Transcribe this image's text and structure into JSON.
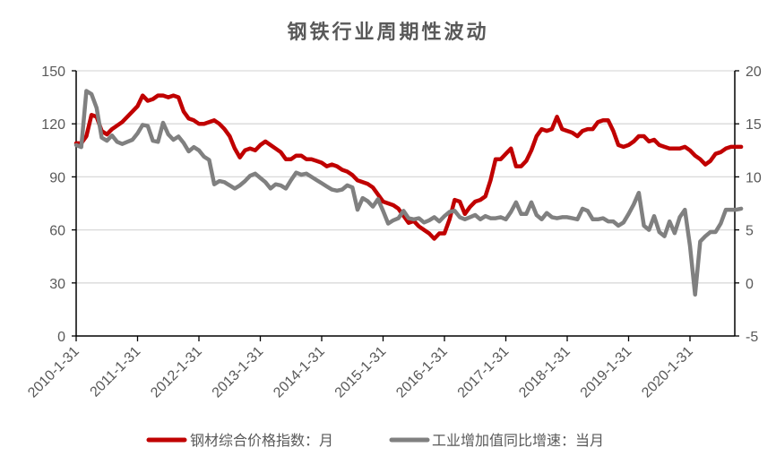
{
  "chart_data": {
    "type": "line",
    "title": "钢铁行业周期性波动",
    "xlabel": "",
    "ylabel_left": "",
    "ylabel_right": "",
    "x_tick_labels": [
      "2010-1-31",
      "2011-1-31",
      "2012-1-31",
      "2013-1-31",
      "2014-1-31",
      "2015-1-31",
      "2016-1-31",
      "2017-1-31",
      "2018-1-31",
      "2019-1-31",
      "2020-1-31"
    ],
    "x_start": "2010-01",
    "x_end": "2020-11",
    "y_left": {
      "ticks": [
        0,
        30,
        60,
        90,
        120,
        150
      ],
      "range": [
        0,
        150
      ]
    },
    "y_right": {
      "ticks": [
        -5,
        0,
        5,
        10,
        15,
        20
      ],
      "range": [
        -5,
        20
      ]
    },
    "grid": "horizontal",
    "legend_position": "bottom",
    "series": [
      {
        "name": "钢材综合价格指数：月",
        "axis": "left",
        "color": "#C00000",
        "values": [
          109,
          109,
          113,
          125,
          124,
          116,
          114,
          117,
          119,
          121,
          124,
          127,
          130,
          136,
          133,
          134,
          136,
          136,
          135,
          136,
          135,
          127,
          123,
          122,
          120,
          120,
          121,
          122,
          120,
          117,
          113,
          106,
          101,
          105,
          106,
          105,
          108,
          110,
          108,
          106,
          104,
          100,
          100,
          102,
          102,
          100,
          100,
          99,
          98,
          96,
          97,
          96,
          94,
          93,
          91,
          88,
          87,
          86,
          84,
          80,
          76,
          75,
          74,
          72,
          68,
          64,
          65,
          62,
          60,
          58,
          55,
          58,
          58,
          66,
          77,
          76,
          69,
          73,
          76,
          77,
          79,
          88,
          100,
          100,
          103,
          106,
          96,
          96,
          99,
          105,
          113,
          117,
          116,
          117,
          124,
          117,
          116,
          115,
          113,
          116,
          117,
          117,
          121,
          122,
          122,
          116,
          108,
          107,
          108,
          110,
          113,
          113,
          110,
          111,
          108,
          107,
          106,
          106,
          106,
          107,
          105,
          102,
          100,
          97,
          99,
          103,
          104,
          106,
          107,
          107,
          107
        ]
      },
      {
        "name": "工业增加值同比增速：当月",
        "axis": "right",
        "color": "#808080",
        "values": [
          13.0,
          12.8,
          18.1,
          17.8,
          16.5,
          13.7,
          13.4,
          13.9,
          13.3,
          13.1,
          13.3,
          13.5,
          14.1,
          14.9,
          14.8,
          13.4,
          13.3,
          15.1,
          14.0,
          13.5,
          13.8,
          13.2,
          12.4,
          12.8,
          12.5,
          11.9,
          11.6,
          9.3,
          9.6,
          9.5,
          9.2,
          8.9,
          9.2,
          9.6,
          10.1,
          10.3,
          9.9,
          9.5,
          8.9,
          9.3,
          9.2,
          8.9,
          9.7,
          10.4,
          10.2,
          10.3,
          10.0,
          9.7,
          9.4,
          9.1,
          8.8,
          8.7,
          8.8,
          9.2,
          9.0,
          6.9,
          8.0,
          7.7,
          7.2,
          7.9,
          6.8,
          5.6,
          5.9,
          6.1,
          6.8,
          6.1,
          6.0,
          6.1,
          5.7,
          5.9,
          6.2,
          5.8,
          6.3,
          6.7,
          6.8,
          6.2,
          6.0,
          6.2,
          6.4,
          6.0,
          6.3,
          6.1,
          6.1,
          6.2,
          6.0,
          6.7,
          7.6,
          6.5,
          6.5,
          7.6,
          6.4,
          6.0,
          6.6,
          6.2,
          6.1,
          6.2,
          6.2,
          6.1,
          6.0,
          7.0,
          6.8,
          6.0,
          6.0,
          6.1,
          5.8,
          5.8,
          5.4,
          5.7,
          6.5,
          7.4,
          8.5,
          5.4,
          5.0,
          6.3,
          4.8,
          4.4,
          5.8,
          4.7,
          6.2,
          6.9,
          3.5,
          -1.1,
          3.9,
          4.4,
          4.8,
          4.8,
          5.6,
          6.9,
          6.9,
          6.9,
          7.0
        ]
      }
    ]
  },
  "legend": {
    "items": [
      {
        "label": "钢材综合价格指数：月",
        "color": "#C00000"
      },
      {
        "label": "工业增加值同比增速：当月",
        "color": "#808080"
      }
    ]
  }
}
